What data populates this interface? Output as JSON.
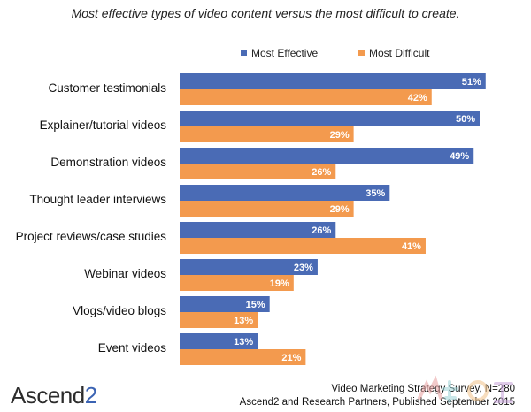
{
  "title": "Most effective types of video content versus the most difficult to create.",
  "legend": {
    "position": "top-right"
  },
  "colors": {
    "effective": "#4a6bb5",
    "difficult": "#f39a4e"
  },
  "chart_data": {
    "type": "bar",
    "orientation": "horizontal",
    "categories": [
      "Customer testimonials",
      "Explainer/tutorial videos",
      "Demonstration videos",
      "Thought leader interviews",
      "Project reviews/case studies",
      "Webinar videos",
      "Vlogs/video blogs",
      "Event videos"
    ],
    "series": [
      {
        "name": "Most Effective",
        "values": [
          51,
          50,
          49,
          35,
          26,
          23,
          15,
          13
        ]
      },
      {
        "name": "Most Difficult",
        "values": [
          42,
          29,
          26,
          29,
          41,
          19,
          13,
          21
        ]
      }
    ],
    "value_suffix": "%",
    "xlim": [
      0,
      60
    ],
    "grid": false
  },
  "footer": {
    "logo_text": "Ascend",
    "logo_number": "2",
    "source_line1": "Video Marketing Strategy Survey, N=280",
    "source_line2": "Ascend2 and Research Partners, Published September 2015"
  }
}
